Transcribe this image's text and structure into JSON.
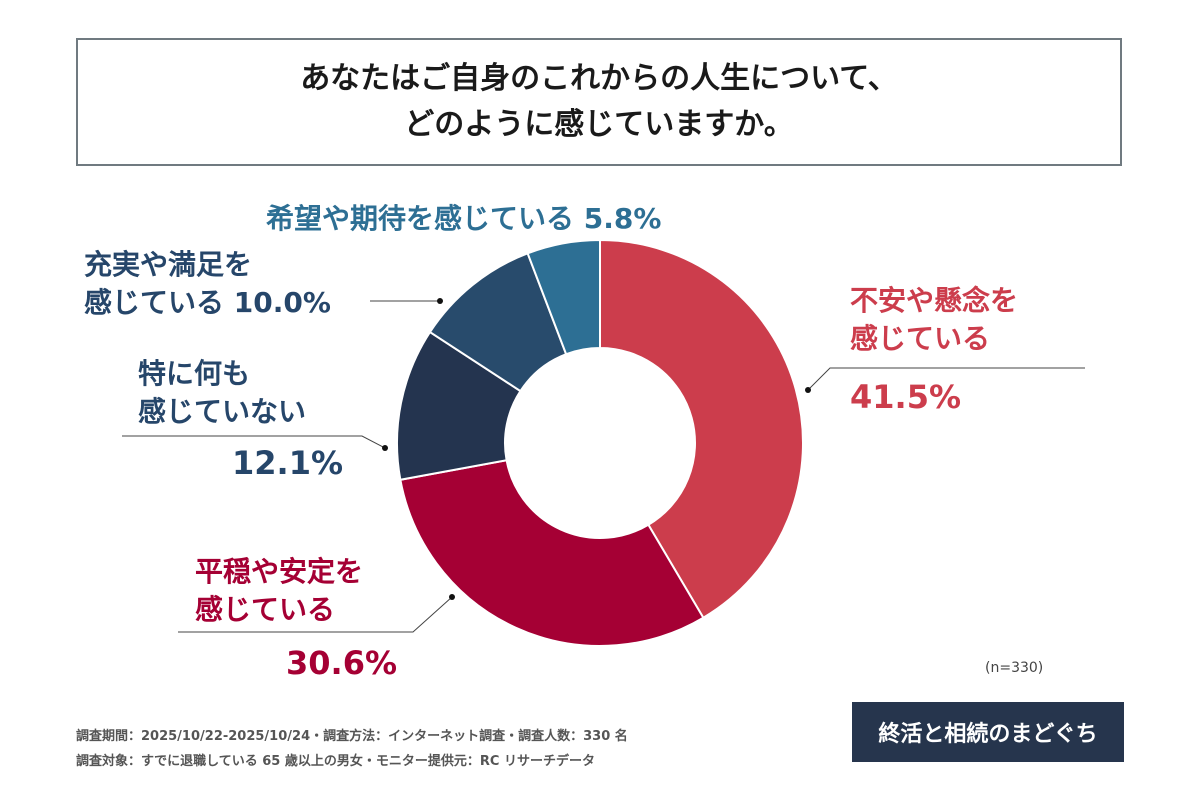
{
  "title": [
    "あなたはご自身のこれからの人生について、",
    "どのように感じていますか。"
  ],
  "chart_data": {
    "type": "pie",
    "donut": true,
    "direction": "clockwise-from-top",
    "slices": [
      {
        "label": "不安や懸念を感じている",
        "value": 41.5,
        "display": "41.5%",
        "color": "#cc3d4c"
      },
      {
        "label": "平穏や安定を感じている",
        "value": 30.6,
        "display": "30.6%",
        "color": "#a50034"
      },
      {
        "label": "特に何も感じていない",
        "value": 12.1,
        "display": "12.1%",
        "color": "#24344f"
      },
      {
        "label": "充実や満足を感じている",
        "value": 10.0,
        "display": "10.0%",
        "color": "#284b6c"
      },
      {
        "label": "希望や期待を感じている",
        "value": 5.8,
        "display": "5.8%",
        "color": "#2d6f94"
      }
    ]
  },
  "labels": {
    "s0": [
      "不安や懸念を",
      "感じている"
    ],
    "s1": [
      "平穏や安定を",
      "感じている"
    ],
    "s2": [
      "特に何も",
      "感じていない"
    ],
    "s3": [
      "充実や満足を",
      "感じている"
    ],
    "s4": "希望や期待を感じている"
  },
  "sample": "(n=330)",
  "footer": [
    "調査期間：2025/10/22-2025/10/24・調査方法：インターネット調査・調査人数：330 名",
    "調査対象：すでに退職している 65 歳以上の男女・モニター提供元：RC リサーチデータ"
  ],
  "logo": "終活と相続のまどぐち"
}
